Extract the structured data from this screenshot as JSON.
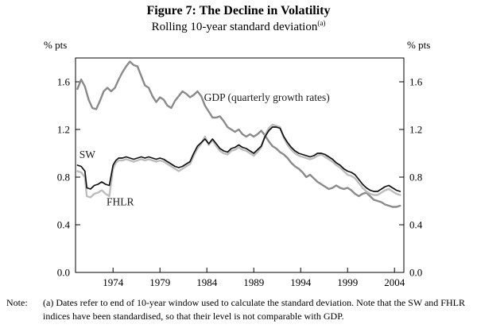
{
  "figure": {
    "title": "Figure 7: The Decline in Volatility",
    "subtitle": "Rolling 10-year standard deviation",
    "subtitle_superscript": "(a)"
  },
  "note": {
    "label": "Note:",
    "text": "(a) Dates refer to end of 10-year window used to calculate the standard deviation. Note that the SW and FHLR indices have been standardised, so that their level is not comparable with GDP."
  },
  "chart_data": {
    "type": "line",
    "title": "Figure 7: The Decline in Volatility",
    "subtitle": "Rolling 10-year standard deviation (a)",
    "ylabel_left": "% pts",
    "ylabel_right": "% pts",
    "ylim": [
      0.0,
      1.8
    ],
    "yticks": [
      0.0,
      0.4,
      0.8,
      1.2,
      1.6
    ],
    "xlim": [
      1970,
      2005
    ],
    "xticks": [
      1974,
      1979,
      1984,
      1989,
      1994,
      1999,
      2004
    ],
    "grid": false,
    "legend_position": "inline-labels",
    "series": [
      {
        "id": "gdp",
        "name": "GDP (quarterly growth rates)",
        "color": "#8a8a8a",
        "width": 2.4,
        "points": [
          [
            1970.2,
            1.54
          ],
          [
            1970.6,
            1.62
          ],
          [
            1971.0,
            1.56
          ],
          [
            1971.4,
            1.45
          ],
          [
            1971.8,
            1.38
          ],
          [
            1972.2,
            1.37
          ],
          [
            1972.6,
            1.44
          ],
          [
            1973.0,
            1.52
          ],
          [
            1973.4,
            1.55
          ],
          [
            1973.8,
            1.52
          ],
          [
            1974.2,
            1.55
          ],
          [
            1974.6,
            1.62
          ],
          [
            1975.0,
            1.68
          ],
          [
            1975.4,
            1.73
          ],
          [
            1975.8,
            1.77
          ],
          [
            1976.2,
            1.74
          ],
          [
            1976.6,
            1.73
          ],
          [
            1977.0,
            1.65
          ],
          [
            1977.4,
            1.57
          ],
          [
            1977.8,
            1.55
          ],
          [
            1978.2,
            1.48
          ],
          [
            1978.6,
            1.43
          ],
          [
            1979.0,
            1.47
          ],
          [
            1979.4,
            1.45
          ],
          [
            1979.8,
            1.4
          ],
          [
            1980.2,
            1.38
          ],
          [
            1980.6,
            1.44
          ],
          [
            1981.0,
            1.48
          ],
          [
            1981.4,
            1.52
          ],
          [
            1981.8,
            1.5
          ],
          [
            1982.2,
            1.47
          ],
          [
            1982.6,
            1.49
          ],
          [
            1983.0,
            1.52
          ],
          [
            1983.4,
            1.48
          ],
          [
            1983.8,
            1.4
          ],
          [
            1984.2,
            1.35
          ],
          [
            1984.6,
            1.3
          ],
          [
            1985.0,
            1.3
          ],
          [
            1985.4,
            1.31
          ],
          [
            1985.8,
            1.27
          ],
          [
            1986.2,
            1.22
          ],
          [
            1986.6,
            1.2
          ],
          [
            1987.0,
            1.18
          ],
          [
            1987.4,
            1.2
          ],
          [
            1987.8,
            1.16
          ],
          [
            1988.2,
            1.14
          ],
          [
            1988.6,
            1.16
          ],
          [
            1989.0,
            1.14
          ],
          [
            1989.4,
            1.16
          ],
          [
            1989.8,
            1.19
          ],
          [
            1990.2,
            1.15
          ],
          [
            1990.6,
            1.1
          ],
          [
            1991.0,
            1.06
          ],
          [
            1991.4,
            1.04
          ],
          [
            1991.8,
            1.01
          ],
          [
            1992.2,
            0.99
          ],
          [
            1992.6,
            0.96
          ],
          [
            1993.0,
            0.92
          ],
          [
            1993.4,
            0.89
          ],
          [
            1993.8,
            0.87
          ],
          [
            1994.2,
            0.84
          ],
          [
            1994.6,
            0.8
          ],
          [
            1995.0,
            0.82
          ],
          [
            1995.4,
            0.79
          ],
          [
            1995.8,
            0.76
          ],
          [
            1996.2,
            0.74
          ],
          [
            1996.6,
            0.72
          ],
          [
            1997.0,
            0.7
          ],
          [
            1997.4,
            0.71
          ],
          [
            1997.8,
            0.73
          ],
          [
            1998.2,
            0.71
          ],
          [
            1998.6,
            0.7
          ],
          [
            1999.0,
            0.71
          ],
          [
            1999.4,
            0.69
          ],
          [
            1999.8,
            0.66
          ],
          [
            2000.2,
            0.64
          ],
          [
            2000.6,
            0.66
          ],
          [
            2001.0,
            0.67
          ],
          [
            2001.4,
            0.64
          ],
          [
            2001.8,
            0.61
          ],
          [
            2002.2,
            0.6
          ],
          [
            2002.6,
            0.59
          ],
          [
            2003.0,
            0.57
          ],
          [
            2003.4,
            0.56
          ],
          [
            2003.8,
            0.55
          ],
          [
            2004.2,
            0.55
          ],
          [
            2004.6,
            0.56
          ]
        ]
      },
      {
        "id": "fhlr",
        "name": "FHLR",
        "color": "#bcbcbc",
        "width": 2.4,
        "points": [
          [
            1970.2,
            0.85
          ],
          [
            1970.6,
            0.84
          ],
          [
            1971.0,
            0.8
          ],
          [
            1971.2,
            0.64
          ],
          [
            1971.6,
            0.63
          ],
          [
            1972.0,
            0.66
          ],
          [
            1972.4,
            0.67
          ],
          [
            1972.8,
            0.69
          ],
          [
            1973.2,
            0.66
          ],
          [
            1973.6,
            0.64
          ],
          [
            1974.0,
            0.87
          ],
          [
            1974.3,
            0.92
          ],
          [
            1974.6,
            0.94
          ],
          [
            1975.0,
            0.94
          ],
          [
            1975.4,
            0.95
          ],
          [
            1975.8,
            0.94
          ],
          [
            1976.2,
            0.93
          ],
          [
            1976.6,
            0.94
          ],
          [
            1977.0,
            0.95
          ],
          [
            1977.4,
            0.94
          ],
          [
            1977.8,
            0.95
          ],
          [
            1978.2,
            0.94
          ],
          [
            1978.6,
            0.93
          ],
          [
            1979.0,
            0.94
          ],
          [
            1979.4,
            0.93
          ],
          [
            1979.8,
            0.91
          ],
          [
            1980.2,
            0.89
          ],
          [
            1980.6,
            0.87
          ],
          [
            1981.0,
            0.85
          ],
          [
            1981.4,
            0.87
          ],
          [
            1981.8,
            0.89
          ],
          [
            1982.2,
            0.91
          ],
          [
            1982.6,
            0.98
          ],
          [
            1983.0,
            1.04
          ],
          [
            1983.4,
            1.08
          ],
          [
            1983.8,
            1.14
          ],
          [
            1984.2,
            1.07
          ],
          [
            1984.6,
            1.11
          ],
          [
            1985.0,
            1.06
          ],
          [
            1985.4,
            1.02
          ],
          [
            1985.8,
            1.0
          ],
          [
            1986.2,
            0.99
          ],
          [
            1986.6,
            1.02
          ],
          [
            1987.0,
            1.03
          ],
          [
            1987.4,
            1.05
          ],
          [
            1987.8,
            1.03
          ],
          [
            1988.2,
            1.02
          ],
          [
            1988.6,
            1.0
          ],
          [
            1989.0,
            0.98
          ],
          [
            1989.4,
            1.01
          ],
          [
            1989.8,
            1.05
          ],
          [
            1990.2,
            1.15
          ],
          [
            1990.6,
            1.21
          ],
          [
            1991.0,
            1.24
          ],
          [
            1991.4,
            1.23
          ],
          [
            1991.8,
            1.22
          ],
          [
            1992.2,
            1.13
          ],
          [
            1992.6,
            1.07
          ],
          [
            1993.0,
            1.03
          ],
          [
            1993.4,
            1.0
          ],
          [
            1993.8,
            0.98
          ],
          [
            1994.2,
            0.97
          ],
          [
            1994.6,
            0.96
          ],
          [
            1995.0,
            0.95
          ],
          [
            1995.4,
            0.96
          ],
          [
            1995.8,
            0.98
          ],
          [
            1996.2,
            0.99
          ],
          [
            1996.6,
            0.97
          ],
          [
            1997.0,
            0.95
          ],
          [
            1997.4,
            0.93
          ],
          [
            1997.8,
            0.9
          ],
          [
            1998.2,
            0.88
          ],
          [
            1998.6,
            0.85
          ],
          [
            1999.0,
            0.82
          ],
          [
            1999.4,
            0.81
          ],
          [
            1999.8,
            0.79
          ],
          [
            2000.2,
            0.75
          ],
          [
            2000.6,
            0.71
          ],
          [
            2001.0,
            0.68
          ],
          [
            2001.4,
            0.66
          ],
          [
            2001.8,
            0.65
          ],
          [
            2002.2,
            0.65
          ],
          [
            2002.6,
            0.67
          ],
          [
            2003.0,
            0.69
          ],
          [
            2003.4,
            0.7
          ],
          [
            2003.8,
            0.68
          ],
          [
            2004.2,
            0.66
          ],
          [
            2004.6,
            0.65
          ]
        ]
      },
      {
        "id": "sw",
        "name": "SW",
        "color": "#111111",
        "width": 1.7,
        "points": [
          [
            1970.2,
            0.9
          ],
          [
            1970.6,
            0.89
          ],
          [
            1971.0,
            0.85
          ],
          [
            1971.2,
            0.71
          ],
          [
            1971.6,
            0.7
          ],
          [
            1972.0,
            0.73
          ],
          [
            1972.4,
            0.74
          ],
          [
            1972.8,
            0.76
          ],
          [
            1973.2,
            0.74
          ],
          [
            1973.6,
            0.73
          ],
          [
            1974.0,
            0.9
          ],
          [
            1974.3,
            0.94
          ],
          [
            1974.6,
            0.96
          ],
          [
            1975.0,
            0.96
          ],
          [
            1975.4,
            0.97
          ],
          [
            1975.8,
            0.96
          ],
          [
            1976.2,
            0.95
          ],
          [
            1976.6,
            0.96
          ],
          [
            1977.0,
            0.97
          ],
          [
            1977.4,
            0.96
          ],
          [
            1977.8,
            0.97
          ],
          [
            1978.2,
            0.96
          ],
          [
            1978.6,
            0.95
          ],
          [
            1979.0,
            0.96
          ],
          [
            1979.4,
            0.95
          ],
          [
            1979.8,
            0.93
          ],
          [
            1980.2,
            0.91
          ],
          [
            1980.6,
            0.89
          ],
          [
            1981.0,
            0.88
          ],
          [
            1981.4,
            0.89
          ],
          [
            1981.8,
            0.91
          ],
          [
            1982.2,
            0.93
          ],
          [
            1982.6,
            1.0
          ],
          [
            1983.0,
            1.06
          ],
          [
            1983.4,
            1.09
          ],
          [
            1983.8,
            1.12
          ],
          [
            1984.2,
            1.08
          ],
          [
            1984.6,
            1.12
          ],
          [
            1985.0,
            1.08
          ],
          [
            1985.4,
            1.04
          ],
          [
            1985.8,
            1.02
          ],
          [
            1986.2,
            1.01
          ],
          [
            1986.6,
            1.04
          ],
          [
            1987.0,
            1.05
          ],
          [
            1987.4,
            1.07
          ],
          [
            1987.8,
            1.05
          ],
          [
            1988.2,
            1.04
          ],
          [
            1988.6,
            1.02
          ],
          [
            1989.0,
            1.0
          ],
          [
            1989.4,
            1.03
          ],
          [
            1989.8,
            1.06
          ],
          [
            1990.2,
            1.14
          ],
          [
            1990.6,
            1.19
          ],
          [
            1991.0,
            1.22
          ],
          [
            1991.4,
            1.22
          ],
          [
            1991.8,
            1.21
          ],
          [
            1992.2,
            1.14
          ],
          [
            1992.6,
            1.09
          ],
          [
            1993.0,
            1.05
          ],
          [
            1993.4,
            1.02
          ],
          [
            1993.8,
            1.0
          ],
          [
            1994.2,
            0.99
          ],
          [
            1994.6,
            0.98
          ],
          [
            1995.0,
            0.97
          ],
          [
            1995.4,
            0.98
          ],
          [
            1995.8,
            1.0
          ],
          [
            1996.2,
            1.0
          ],
          [
            1996.6,
            0.99
          ],
          [
            1997.0,
            0.97
          ],
          [
            1997.4,
            0.95
          ],
          [
            1997.8,
            0.92
          ],
          [
            1998.2,
            0.9
          ],
          [
            1998.6,
            0.87
          ],
          [
            1999.0,
            0.85
          ],
          [
            1999.4,
            0.84
          ],
          [
            1999.8,
            0.82
          ],
          [
            2000.2,
            0.78
          ],
          [
            2000.6,
            0.74
          ],
          [
            2001.0,
            0.71
          ],
          [
            2001.4,
            0.69
          ],
          [
            2001.8,
            0.68
          ],
          [
            2002.2,
            0.68
          ],
          [
            2002.6,
            0.7
          ],
          [
            2003.0,
            0.72
          ],
          [
            2003.4,
            0.73
          ],
          [
            2003.8,
            0.71
          ],
          [
            2004.2,
            0.69
          ],
          [
            2004.6,
            0.68
          ]
        ]
      }
    ],
    "annotations": [
      {
        "id": "gdp",
        "text": "GDP (quarterly growth rates)",
        "x": 1983.7,
        "y": 1.44,
        "anchor": "start"
      },
      {
        "id": "sw",
        "text": "SW",
        "x": 1970.4,
        "y": 0.96,
        "anchor": "start"
      },
      {
        "id": "fhlr",
        "text": "FHLR",
        "x": 1973.3,
        "y": 0.565,
        "anchor": "start"
      }
    ]
  }
}
